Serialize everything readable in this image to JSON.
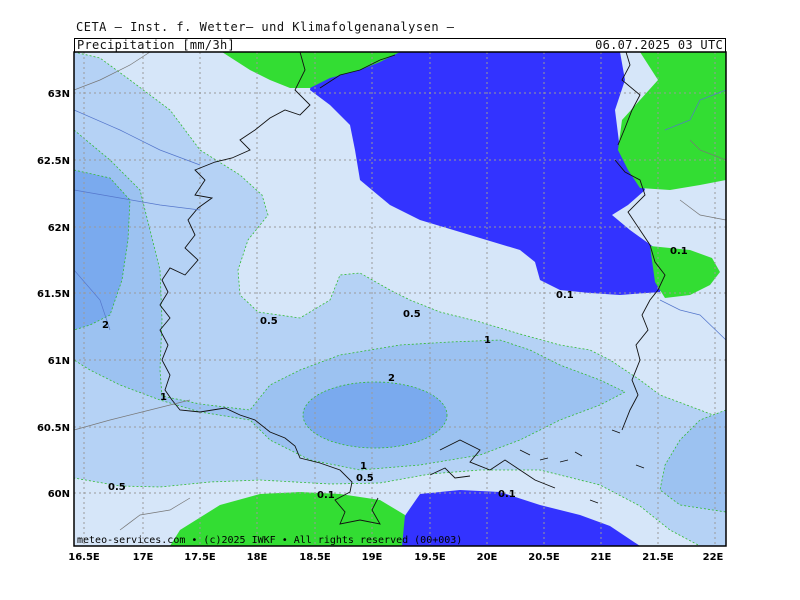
{
  "header": {
    "title": "CETA — Inst. f. Wetter— und Klimafolgenanalysen —",
    "parameter": "Precipitation [mm/3h]",
    "valid_time": "06.07.2025 03 UTC"
  },
  "footer": {
    "copyright": "meteo-services.com • (c)2025 IWKF • All rights reserved (00+003)"
  },
  "axes": {
    "lon_ticks": [
      "16.5E",
      "17E",
      "17.5E",
      "18E",
      "18.5E",
      "19E",
      "19.5E",
      "20E",
      "20.5E",
      "21E",
      "21.5E",
      "22E"
    ],
    "lat_ticks": [
      "63N",
      "62.5N",
      "62N",
      "61.5N",
      "61N",
      "60.5N",
      "60N"
    ]
  },
  "isolines": [
    "0.1",
    "0.1",
    "0.1",
    "0.1",
    "0.5",
    "0.5",
    "0.5",
    "0.5",
    "1",
    "1",
    "1",
    "2",
    "2"
  ],
  "colors": {
    "none": "#ffffff",
    "p0_1": "#d6e6f9",
    "p0_5": "#b5d2f5",
    "p1": "#9cc2f1",
    "p2": "#7aaaee",
    "land_green": "#33dd33",
    "sea_blue": "#3333ff"
  }
}
